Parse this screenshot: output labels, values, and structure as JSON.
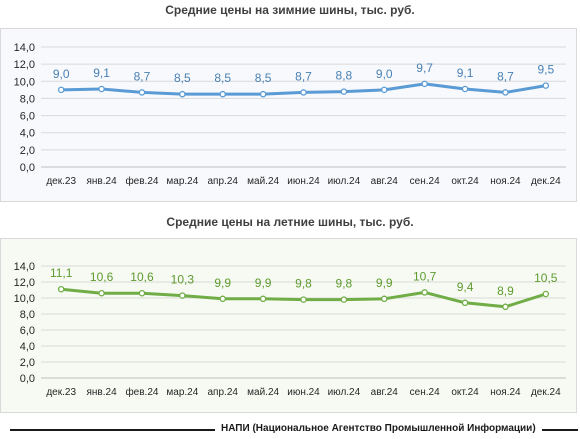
{
  "colors": {
    "series1": "#5b9bd5",
    "series2": "#70ad47",
    "grid": "#d9d9d9"
  },
  "chart_data": [
    {
      "type": "line",
      "title": "Средние цены на зимние шины, тыс. руб.",
      "categories": [
        "дек.23",
        "янв.24",
        "фев.24",
        "мар.24",
        "апр.24",
        "май.24",
        "июн.24",
        "июл.24",
        "авг.24",
        "сен.24",
        "окт.24",
        "ноя.24",
        "дек.24"
      ],
      "values": [
        9.0,
        9.1,
        8.7,
        8.5,
        8.5,
        8.5,
        8.7,
        8.8,
        9.0,
        9.7,
        9.1,
        8.7,
        9.5
      ],
      "data_labels": [
        "9,0",
        "9,1",
        "8,7",
        "8,5",
        "8,5",
        "8,5",
        "8,7",
        "8,8",
        "9,0",
        "9,7",
        "9,1",
        "8,7",
        "9,5"
      ],
      "y_ticks": [
        "0,0",
        "2,0",
        "4,0",
        "6,0",
        "8,0",
        "10,0",
        "12,0",
        "14,0"
      ],
      "ylim": [
        0,
        14
      ],
      "grid": true,
      "legend": "none"
    },
    {
      "type": "line",
      "title": "Средние цены на летние шины, тыс. руб.",
      "categories": [
        "дек.23",
        "янв.24",
        "фев.24",
        "мар.24",
        "апр.24",
        "май.24",
        "июн.24",
        "июл.24",
        "авг.24",
        "сен.24",
        "окт.24",
        "ноя.24",
        "дек.24"
      ],
      "values": [
        11.1,
        10.6,
        10.6,
        10.3,
        9.9,
        9.9,
        9.8,
        9.8,
        9.9,
        10.7,
        9.4,
        8.9,
        10.5
      ],
      "data_labels": [
        "11,1",
        "10,6",
        "10,6",
        "10,3",
        "9,9",
        "9,9",
        "9,8",
        "9,8",
        "9,9",
        "10,7",
        "9,4",
        "8,9",
        "10,5"
      ],
      "y_ticks": [
        "0,0",
        "2,0",
        "4,0",
        "6,0",
        "8,0",
        "10,0",
        "12,0",
        "14,0"
      ],
      "ylim": [
        0,
        14
      ],
      "grid": true,
      "legend": "none"
    }
  ],
  "footer": {
    "text": "НАПИ (Национальное Агентство Промышленной Информации)"
  }
}
